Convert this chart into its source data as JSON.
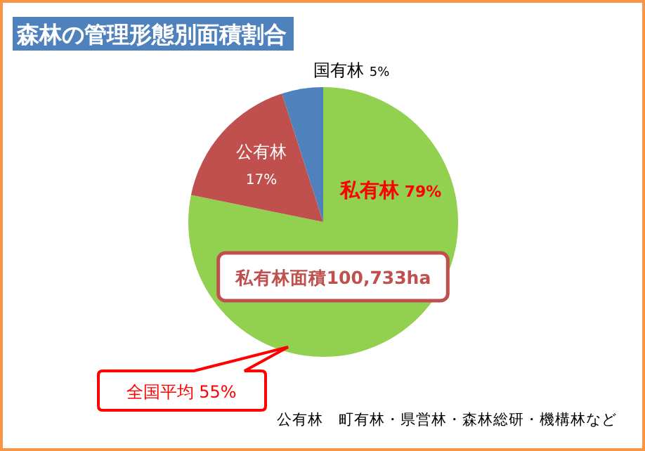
{
  "chart_data": {
    "type": "pie",
    "title": "森林の管理形態別面積割合",
    "categories": [
      "私有林",
      "公有林",
      "国有林"
    ],
    "values": [
      79,
      17,
      5
    ],
    "value_labels": [
      "79%",
      "17%",
      "5%"
    ],
    "colors": [
      "#92d050",
      "#c0504d",
      "#4f81bd"
    ],
    "annotations": [
      "私有林面積100,733ha",
      "全国平均 55%",
      "公有林　町有林・県営林・森林総研・機構林など"
    ]
  }
}
